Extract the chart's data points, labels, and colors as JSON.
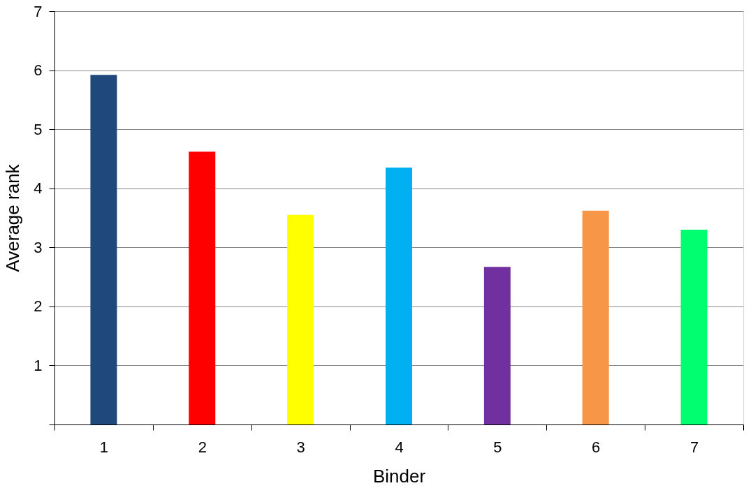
{
  "chart_data": {
    "type": "bar",
    "xlabel": "Binder",
    "ylabel": "Average rank",
    "categories": [
      "1",
      "2",
      "3",
      "4",
      "5",
      "6",
      "7"
    ],
    "values": [
      5.92,
      4.62,
      3.55,
      4.35,
      2.67,
      3.62,
      3.3
    ],
    "colors": [
      "#1f497d",
      "#ff0000",
      "#ffff00",
      "#00b0f0",
      "#7030a0",
      "#f79646",
      "#00ff70"
    ],
    "ylim": [
      0,
      7
    ],
    "yticks": [
      {
        "value": 0,
        "label": null
      },
      1,
      2,
      3,
      4,
      5,
      6,
      7
    ],
    "grid": "y"
  }
}
